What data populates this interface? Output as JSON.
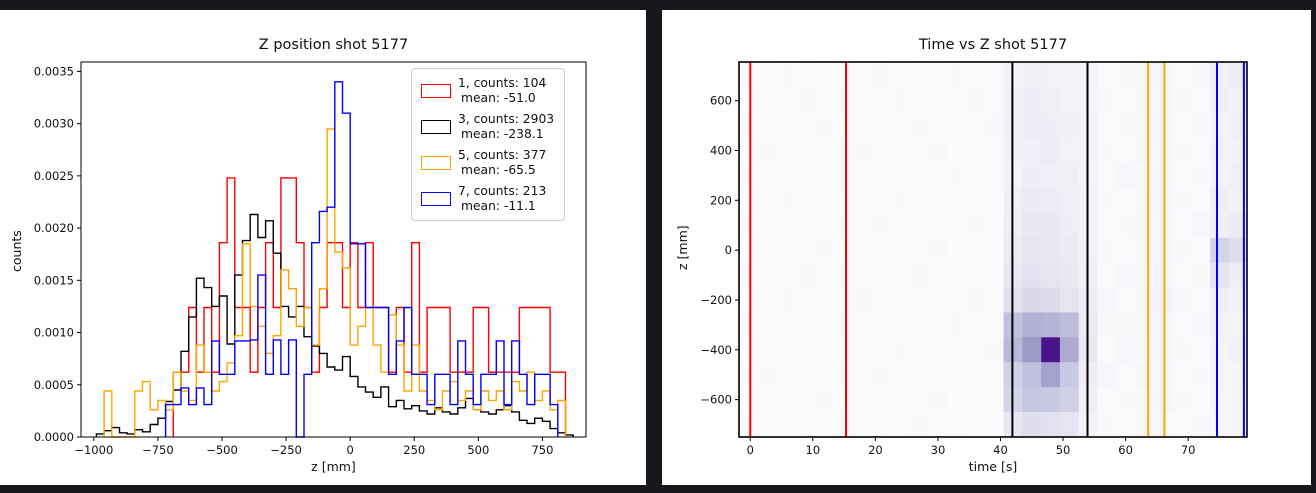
{
  "page": {
    "background": "#17171e",
    "panel_background": "#ffffff"
  },
  "chart_data": [
    {
      "type": "histogram-step",
      "title": "Z position shot 5177",
      "xlabel": "z [mm]",
      "ylabel": "counts",
      "xlim": [
        -1050,
        920
      ],
      "ylim": [
        0,
        0.00359
      ],
      "grid": false,
      "legend_position": "upper right",
      "xticks": [
        [
          -1000,
          "−1000"
        ],
        [
          -750,
          "−750"
        ],
        [
          -500,
          "−500"
        ],
        [
          -250,
          "−250"
        ],
        [
          0,
          "0"
        ],
        [
          250,
          "250"
        ],
        [
          500,
          "500"
        ],
        [
          750,
          "750"
        ]
      ],
      "yticks": [
        [
          0,
          "0.0000"
        ],
        [
          0.0005,
          "0.0005"
        ],
        [
          0.001,
          "0.0010"
        ],
        [
          0.0015,
          "0.0015"
        ],
        [
          0.002,
          "0.0020"
        ],
        [
          0.0025,
          "0.0025"
        ],
        [
          0.003,
          "0.0030"
        ],
        [
          0.0035,
          "0.0035"
        ]
      ],
      "bin_start": -1050,
      "bin_width": 30,
      "series": [
        {
          "name": "1, counts: 104",
          "mean_label": "mean: -51.0",
          "color": "#ff0000",
          "values": [
            0,
            0,
            0,
            0,
            0,
            0,
            0,
            0,
            0,
            0,
            0,
            0,
            0.00062,
            0.00062,
            0.00124,
            0.00062,
            0.00124,
            0.00062,
            0.00186,
            0.00248,
            0.00124,
            0.00124,
            0.00062,
            0.00124,
            0.00186,
            0.00124,
            0.00248,
            0.00248,
            0.00186,
            0.00124,
            0.00062,
            0.00124,
            0.00186,
            0.00186,
            0.00124,
            0.00186,
            0.00124,
            0.00186,
            0.00124,
            0.00124,
            0.00062,
            0.00124,
            0.00062,
            0.00186,
            0.00062,
            0.00124,
            0.00124,
            0.00124,
            0.00062,
            0.00062,
            0.00062,
            0.00124,
            0.00124,
            0.00062,
            0.00062,
            0.00062,
            0.00062,
            0.00124,
            0.00124,
            0.00124,
            0.00124,
            0.00062,
            0.00062,
            0
          ]
        },
        {
          "name": "3, counts: 2903",
          "mean_label": "mean: -238.1",
          "color": "#000000",
          "values": [
            0,
            0,
            3e-05,
            6e-05,
            9e-05,
            4e-05,
            3e-05,
            7e-05,
            5e-05,
            0.00012,
            0.00018,
            0.00034,
            0.00045,
            0.00082,
            0.00115,
            0.00152,
            0.00143,
            0.00125,
            0.00135,
            0.00089,
            0.00155,
            0.00188,
            0.00213,
            0.00191,
            0.00207,
            0.00176,
            0.00125,
            0.00115,
            0.00125,
            0.00096,
            0.00087,
            0.0008,
            0.00067,
            0.00064,
            0.00077,
            0.00058,
            0.00048,
            0.00043,
            0.00038,
            0.00048,
            0.00029,
            0.00035,
            0.00027,
            0.0003,
            0.00025,
            0.00022,
            0.00028,
            0.00024,
            0.00022,
            0.00028,
            0.00037,
            0.00026,
            0.00024,
            0.00022,
            0.00026,
            0.0003,
            0.00024,
            0.00016,
            0.00013,
            0.00018,
            0.00015,
            8e-05,
            4e-05,
            2e-05
          ]
        },
        {
          "name": "5, counts: 377",
          "mean_label": "mean: -65.5",
          "color": "#ffa500",
          "values": [
            0,
            0,
            0,
            0.00044,
            0,
            0,
            0,
            0.00044,
            0.00053,
            0.00026,
            0.00035,
            0.00026,
            0.00062,
            0.00044,
            0.00035,
            0.00088,
            0.00062,
            0.00044,
            0.00053,
            0.00071,
            0.00097,
            0.00185,
            0.00125,
            0.00106,
            0.0008,
            0.00097,
            0.0016,
            0.00142,
            0.00106,
            0.00124,
            0.00088,
            0.00142,
            0.00295,
            0.00177,
            0.00162,
            0.00088,
            0.00106,
            0.00124,
            0.00088,
            0.00062,
            0.00117,
            0.00088,
            0.00044,
            0.00088,
            0.00044,
            0.00035,
            0.00026,
            0.00044,
            0.00053,
            0.00035,
            0.00044,
            0.00026,
            0.00044,
            0.00035,
            0.00044,
            0.00026,
            0.00053,
            0.00044,
            0.00062,
            0.00035,
            0.00044,
            0.00026,
            0.00035,
            0
          ]
        },
        {
          "name": "7, counts: 213",
          "mean_label": "mean: -11.1",
          "color": "#0000ff",
          "values": [
            0,
            0,
            0,
            0,
            0,
            0,
            0,
            0,
            0,
            0,
            0,
            0.00031,
            0.00031,
            0.00047,
            0.00031,
            0.00047,
            0.00031,
            0.00092,
            0.0006,
            0.0006,
            0.00092,
            0.00092,
            0.00093,
            0.00155,
            0.0006,
            0.00093,
            0.0006,
            0.00093,
            0,
            0.0006,
            0.00186,
            0.00216,
            0.0022,
            0.0034,
            0.0031,
            0.00185,
            0.00185,
            0.00124,
            0.00124,
            0.00124,
            0.0006,
            0.00092,
            0.00124,
            0.0006,
            0.0006,
            0.00031,
            0.0006,
            0.0006,
            0.00031,
            0.00092,
            0.0006,
            0.00031,
            0.0006,
            0.0006,
            0.00092,
            0.00031,
            0.00092,
            0.0006,
            0.00031,
            0.0006,
            0.0006,
            0.00031,
            0,
            0
          ]
        }
      ]
    },
    {
      "type": "heatmap",
      "title": "Time vs Z shot 5177",
      "xlabel": "time [s]",
      "ylabel": "z [mm]",
      "xlim": [
        -1.8,
        79.4
      ],
      "ylim": [
        -750,
        755
      ],
      "xticks": [
        [
          0,
          "0"
        ],
        [
          10,
          "10"
        ],
        [
          20,
          "20"
        ],
        [
          30,
          "30"
        ],
        [
          40,
          "40"
        ],
        [
          50,
          "50"
        ],
        [
          60,
          "60"
        ],
        [
          70,
          "70"
        ]
      ],
      "yticks": [
        [
          -600,
          "−600"
        ],
        [
          -400,
          "−400"
        ],
        [
          -200,
          "−200"
        ],
        [
          0,
          "0"
        ],
        [
          200,
          "200"
        ],
        [
          400,
          "400"
        ],
        [
          600,
          "600"
        ]
      ],
      "colormap": {
        "name": "Purples",
        "stops": [
          [
            0,
            "#fcfbfd"
          ],
          [
            0.12,
            "#efedf5"
          ],
          [
            0.25,
            "#dadaeb"
          ],
          [
            0.4,
            "#bcbddc"
          ],
          [
            0.55,
            "#9e9ac8"
          ],
          [
            0.7,
            "#807dba"
          ],
          [
            0.85,
            "#6a51a3"
          ],
          [
            1,
            "#4a1486"
          ]
        ]
      },
      "grid": {
        "t0": -1.5,
        "dt": 3,
        "z_top": 750,
        "dz": 100,
        "rows": [
          [
            2,
            1,
            3,
            1,
            2,
            1,
            2,
            3,
            1,
            2,
            1,
            3,
            2,
            1,
            8,
            10,
            9,
            8,
            6,
            2,
            3,
            4,
            5,
            2,
            3,
            9,
            12
          ],
          [
            1,
            2,
            1,
            3,
            1,
            2,
            1,
            2,
            3,
            1,
            2,
            1,
            3,
            2,
            9,
            12,
            10,
            9,
            6,
            3,
            2,
            5,
            4,
            3,
            2,
            10,
            8
          ],
          [
            2,
            1,
            2,
            1,
            3,
            1,
            2,
            1,
            2,
            3,
            1,
            2,
            1,
            3,
            10,
            13,
            12,
            10,
            7,
            2,
            3,
            4,
            6,
            2,
            3,
            8,
            11
          ],
          [
            1,
            3,
            1,
            2,
            1,
            2,
            3,
            1,
            2,
            1,
            3,
            1,
            2,
            1,
            9,
            11,
            13,
            9,
            7,
            3,
            2,
            5,
            4,
            3,
            2,
            9,
            8
          ],
          [
            2,
            1,
            2,
            1,
            2,
            3,
            1,
            2,
            1,
            2,
            1,
            3,
            1,
            2,
            8,
            12,
            11,
            10,
            6,
            2,
            4,
            3,
            5,
            2,
            3,
            8,
            10
          ],
          [
            1,
            2,
            3,
            1,
            2,
            1,
            2,
            1,
            3,
            1,
            2,
            1,
            2,
            1,
            10,
            14,
            13,
            11,
            8,
            3,
            2,
            4,
            6,
            3,
            2,
            12,
            9
          ],
          [
            2,
            1,
            1,
            2,
            1,
            2,
            1,
            3,
            1,
            2,
            1,
            2,
            3,
            1,
            12,
            16,
            15,
            12,
            8,
            2,
            3,
            5,
            4,
            2,
            4,
            10,
            14
          ],
          [
            1,
            2,
            2,
            1,
            3,
            1,
            2,
            1,
            2,
            1,
            3,
            1,
            1,
            2,
            14,
            18,
            16,
            14,
            9,
            3,
            2,
            4,
            5,
            3,
            2,
            28,
            22
          ],
          [
            2,
            1,
            1,
            3,
            1,
            2,
            1,
            2,
            1,
            3,
            1,
            2,
            2,
            1,
            16,
            20,
            18,
            15,
            10,
            2,
            4,
            3,
            6,
            2,
            3,
            18,
            12
          ],
          [
            1,
            2,
            3,
            1,
            2,
            1,
            3,
            1,
            2,
            1,
            2,
            1,
            3,
            2,
            20,
            26,
            24,
            18,
            12,
            4,
            2,
            5,
            8,
            3,
            2,
            10,
            8
          ],
          [
            2,
            1,
            1,
            2,
            1,
            3,
            1,
            2,
            1,
            2,
            1,
            3,
            1,
            1,
            38,
            46,
            44,
            40,
            14,
            3,
            3,
            4,
            6,
            2,
            4,
            8,
            6
          ],
          [
            1,
            1,
            2,
            1,
            2,
            1,
            2,
            1,
            3,
            1,
            2,
            1,
            2,
            3,
            42,
            55,
            100,
            48,
            16,
            2,
            4,
            3,
            5,
            3,
            2,
            7,
            9
          ],
          [
            2,
            3,
            1,
            2,
            1,
            2,
            1,
            3,
            1,
            2,
            1,
            2,
            1,
            1,
            30,
            38,
            52,
            34,
            12,
            4,
            2,
            5,
            4,
            2,
            3,
            6,
            5
          ],
          [
            1,
            1,
            2,
            1,
            3,
            1,
            2,
            1,
            2,
            1,
            3,
            1,
            2,
            2,
            28,
            36,
            34,
            30,
            10,
            2,
            3,
            3,
            5,
            3,
            2,
            5,
            6
          ],
          [
            2,
            1,
            1,
            2,
            1,
            2,
            1,
            2,
            1,
            3,
            1,
            2,
            1,
            1,
            16,
            22,
            20,
            18,
            8,
            3,
            2,
            4,
            3,
            2,
            3,
            4,
            5
          ]
        ]
      },
      "vlines": [
        {
          "x": 0.0,
          "color": "#ff0000"
        },
        {
          "x": 15.3,
          "color": "#ff0000"
        },
        {
          "x": 41.9,
          "color": "#000000"
        },
        {
          "x": 53.9,
          "color": "#000000"
        },
        {
          "x": 63.6,
          "color": "#ffa500"
        },
        {
          "x": 66.2,
          "color": "#ffa500"
        },
        {
          "x": 74.6,
          "color": "#0000ff"
        },
        {
          "x": 78.9,
          "color": "#0000ff"
        }
      ]
    }
  ]
}
